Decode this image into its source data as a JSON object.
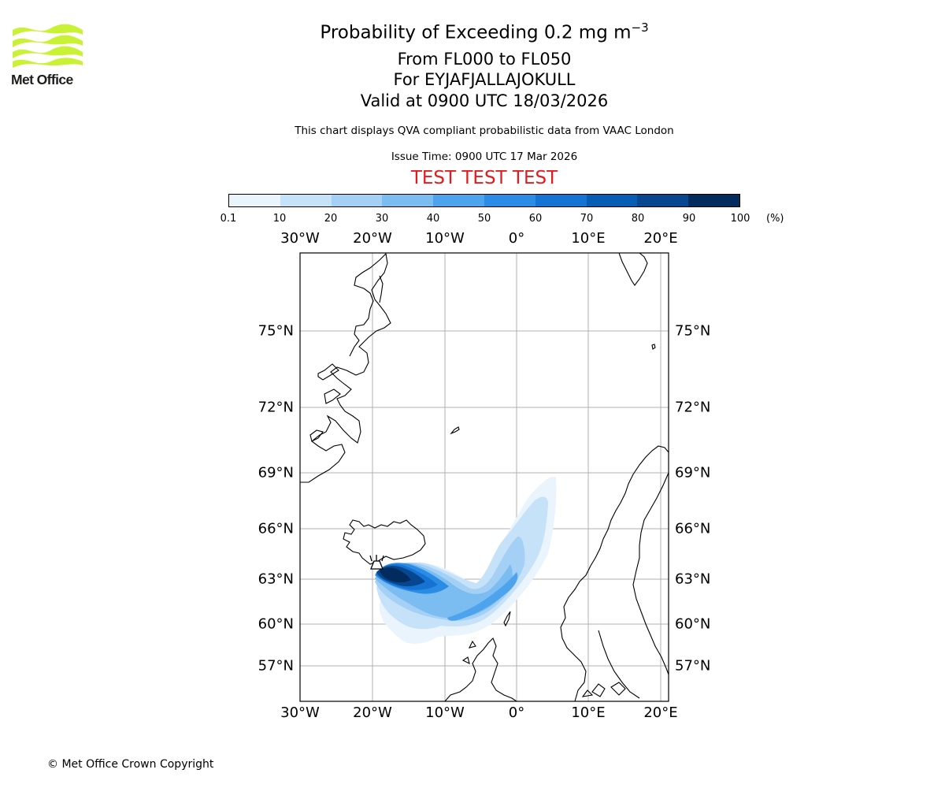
{
  "logo": {
    "text": "Met Office",
    "color": "#c8f233"
  },
  "titles": {
    "line1_prefix": "Probability of Exceeding 0.2 mg m",
    "line1_superscript": "−3",
    "line2": "From FL000 to FL050",
    "line3": "For EYJAFJALLAJOKULL",
    "line4": "Valid at 0900 UTC 18/03/2026",
    "description": "This chart displays QVA compliant probabilistic data from VAAC London",
    "issue_time": "Issue Time: 0900 UTC 17 Mar 2026",
    "test_banner": "TEST TEST TEST",
    "test_banner_color": "#e41a1c"
  },
  "colorbar": {
    "unit": "(%)",
    "ticks": [
      "0.1",
      "10",
      "20",
      "30",
      "40",
      "50",
      "60",
      "70",
      "80",
      "90",
      "100"
    ],
    "colors": [
      "#eaf4fd",
      "#c6e2f9",
      "#a5d0f6",
      "#7bbcf1",
      "#4da4ec",
      "#2b8ce5",
      "#1473d3",
      "#095cb4",
      "#06478f",
      "#032c5e"
    ]
  },
  "map": {
    "lon_labels": [
      "30°W",
      "20°W",
      "10°W",
      "0°",
      "10°E",
      "20°E"
    ],
    "lat_labels": [
      "75°N",
      "72°N",
      "69°N",
      "66°N",
      "63°N",
      "60°N",
      "57°N"
    ],
    "volcano_icon": "volcano-icon"
  },
  "copyright": "© Met Office Crown Copyright"
}
